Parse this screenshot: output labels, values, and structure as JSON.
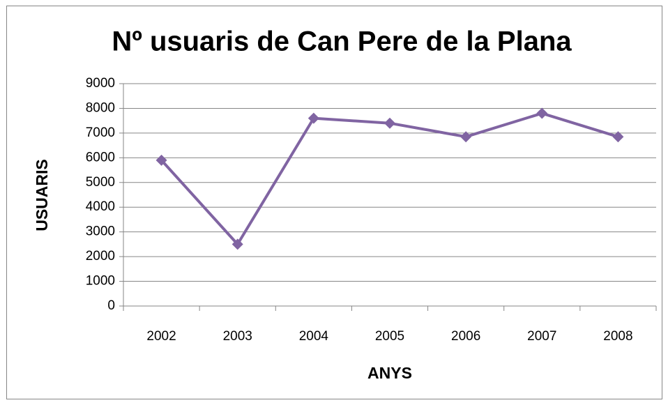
{
  "chart_data": {
    "type": "line",
    "title": "Nº usuaris de Can Pere de la Plana",
    "x_label": "ANYS",
    "y_label": "USUARIS",
    "categories": [
      "2002",
      "2003",
      "2004",
      "2005",
      "2006",
      "2007",
      "2008"
    ],
    "series": [
      {
        "name": "USUARIS",
        "color": "#8064a2",
        "values": [
          5900,
          2500,
          7600,
          7400,
          6850,
          7800,
          6850
        ]
      }
    ],
    "ylim": [
      0,
      9000
    ],
    "yticks": [
      0,
      1000,
      2000,
      3000,
      4000,
      5000,
      6000,
      7000,
      8000,
      9000
    ],
    "grid": true
  }
}
